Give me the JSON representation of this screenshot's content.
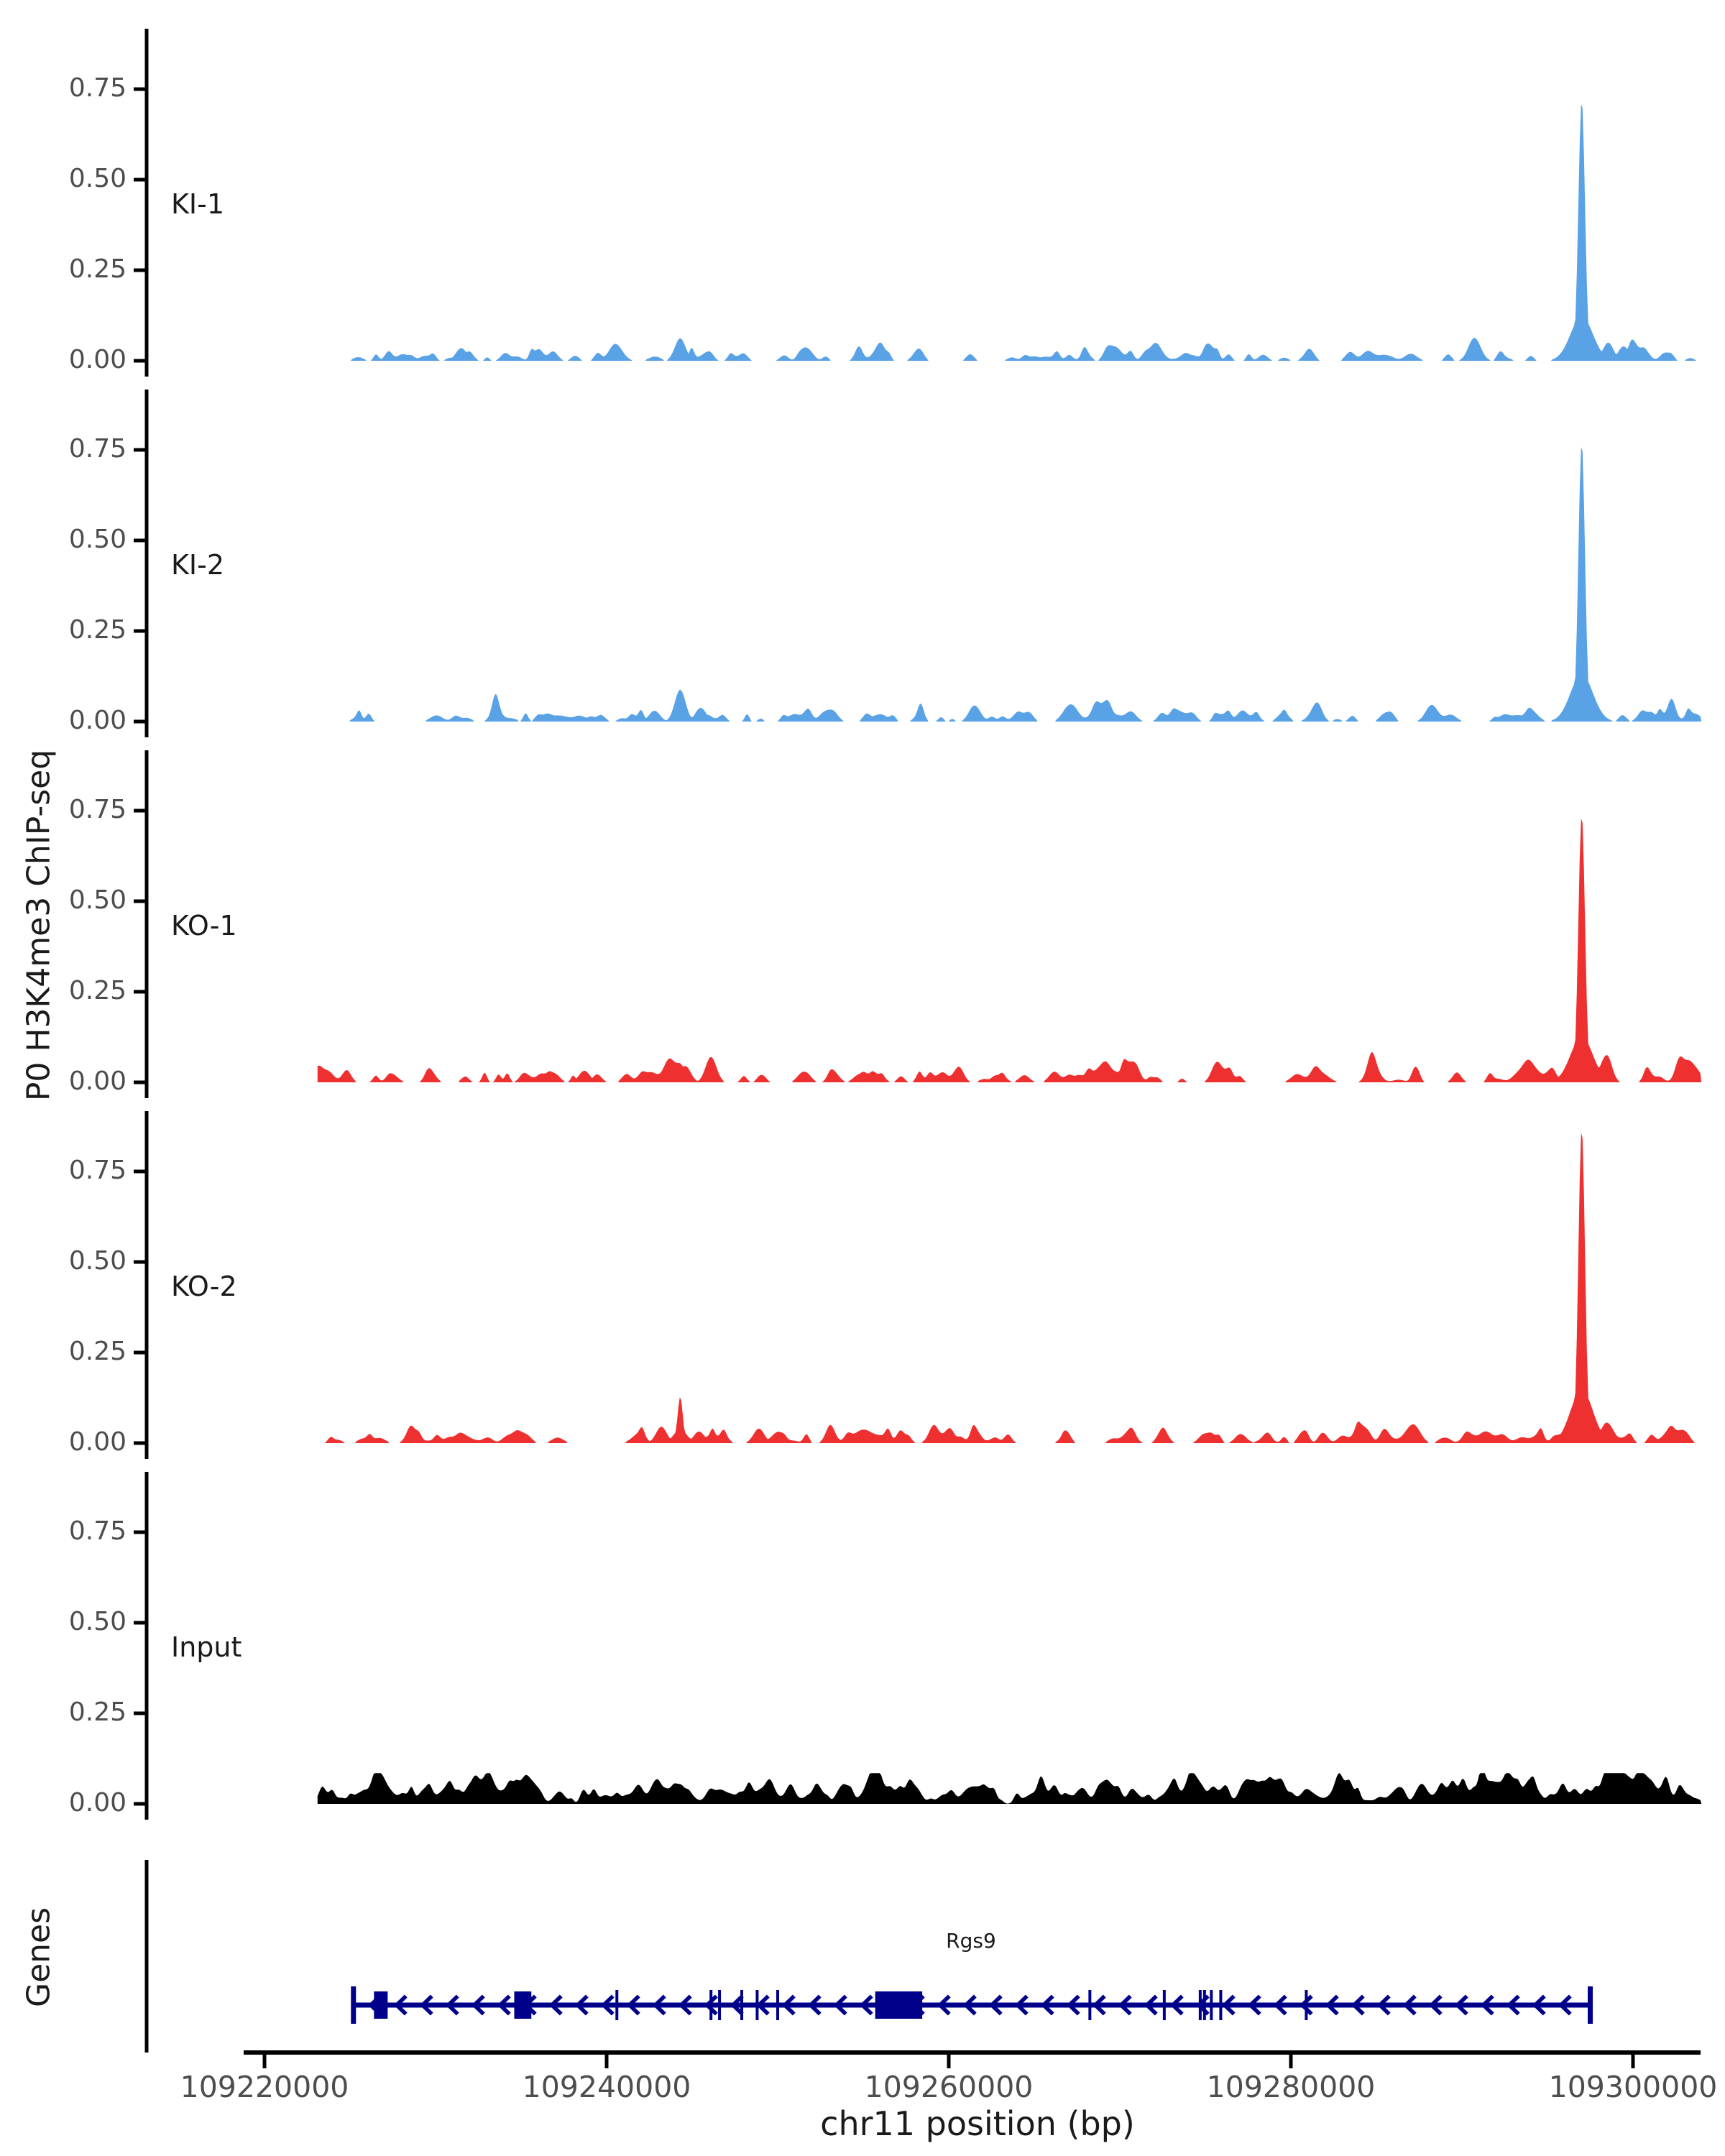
{
  "figure": {
    "y_axis_label": "P0 H3K4me3 ChIP-seq",
    "genes_label": "Genes",
    "x_axis": {
      "title": "chr11 position (bp)",
      "tick_values": [
        109220000,
        109240000,
        109260000,
        109280000,
        109300000
      ],
      "tick_labels": [
        "109220000",
        "109240000",
        "109260000",
        "109280000",
        "109300000"
      ]
    }
  },
  "chart_data": {
    "type": "area",
    "title": "",
    "xlabel": "chr11 position (bp)",
    "ylabel": "P0 H3K4me3 ChIP-seq",
    "x_range_bp": [
      109218600,
      109303900
    ],
    "data_range_bp": [
      109223100,
      109304000
    ],
    "ylim": [
      0,
      0.92
    ],
    "y_tick_values": [
      0,
      0.25,
      0.5,
      0.75
    ],
    "y_tick_labels": [
      "0.00",
      "0.25",
      "0.50",
      "0.75"
    ],
    "grid": false,
    "legend": "none",
    "colors": {
      "ki": "#5AA2E6",
      "ko": "#EE3130",
      "input": "#000000",
      "gene": "#00008B",
      "axis": "#000000",
      "tick_text": "#4D4D4D"
    },
    "tracks": [
      {
        "label": "KI-1",
        "color": "#5AA2E6",
        "peaks": [
          {
            "pos_bp": 109297000,
            "height": 0.72,
            "kind": "sharp"
          },
          {
            "pos_bp": 109244300,
            "height": 0.062,
            "kind": "bump"
          },
          {
            "pos_bp": 109298550,
            "height": 0.05,
            "kind": "bump"
          },
          {
            "pos_bp": 109299450,
            "height": 0.04,
            "kind": "bump"
          },
          {
            "pos_bp": 109231500,
            "height": 0.035,
            "kind": "bump"
          }
        ],
        "noise": {
          "seed": 101,
          "bumps": 105,
          "min_height": 0.006,
          "max_height": 0.026
        }
      },
      {
        "label": "KI-2",
        "color": "#5AA2E6",
        "peaks": [
          {
            "pos_bp": 109297000,
            "height": 0.77,
            "kind": "sharp"
          },
          {
            "pos_bp": 109244300,
            "height": 0.088,
            "kind": "bump"
          },
          {
            "pos_bp": 109245500,
            "height": 0.038,
            "kind": "bump"
          },
          {
            "pos_bp": 109242800,
            "height": 0.03,
            "kind": "bump"
          }
        ],
        "noise": {
          "seed": 202,
          "bumps": 118,
          "min_height": 0.006,
          "max_height": 0.026
        }
      },
      {
        "label": "KO-1",
        "color": "#EE3130",
        "peaks": [
          {
            "pos_bp": 109297000,
            "height": 0.74,
            "kind": "sharp"
          },
          {
            "pos_bp": 109246100,
            "height": 0.07,
            "kind": "bump"
          },
          {
            "pos_bp": 109244600,
            "height": 0.045,
            "kind": "bump"
          },
          {
            "pos_bp": 109238700,
            "height": 0.032,
            "kind": "bump"
          }
        ],
        "noise": {
          "seed": 303,
          "bumps": 132,
          "min_height": 0.006,
          "max_height": 0.028
        }
      },
      {
        "label": "KO-2",
        "color": "#EE3130",
        "peaks": [
          {
            "pos_bp": 109297000,
            "height": 0.87,
            "kind": "sharp"
          },
          {
            "pos_bp": 109244300,
            "height": 0.128,
            "kind": "spike"
          },
          {
            "pos_bp": 109243200,
            "height": 0.045,
            "kind": "bump"
          },
          {
            "pos_bp": 109245400,
            "height": 0.032,
            "kind": "bump"
          },
          {
            "pos_bp": 109248900,
            "height": 0.04,
            "kind": "bump"
          }
        ],
        "noise": {
          "seed": 404,
          "bumps": 132,
          "min_height": 0.006,
          "max_height": 0.026
        }
      },
      {
        "label": "Input",
        "color": "#000000",
        "peaks": [],
        "noise": {
          "seed": 505,
          "bumps": 520,
          "min_height": 0.004,
          "max_height": 0.018,
          "continuous": true,
          "cap": 0.085
        }
      }
    ],
    "gene_track": {
      "genes": [
        {
          "name": "Rgs9",
          "chrom": "chr11",
          "strand": "-",
          "start_bp": 109225200,
          "end_bp": 109297500,
          "exons_bp": [
            [
              109226400,
              109227200
            ],
            [
              109234600,
              109235600
            ],
            [
              109255700,
              109258450
            ]
          ],
          "small_exons_bp": [
            109240600,
            109246100,
            109246600,
            109247900,
            109248800,
            109250000,
            109268250,
            109272600,
            109274700,
            109274950,
            109275350,
            109275900,
            109280900
          ]
        }
      ]
    }
  }
}
